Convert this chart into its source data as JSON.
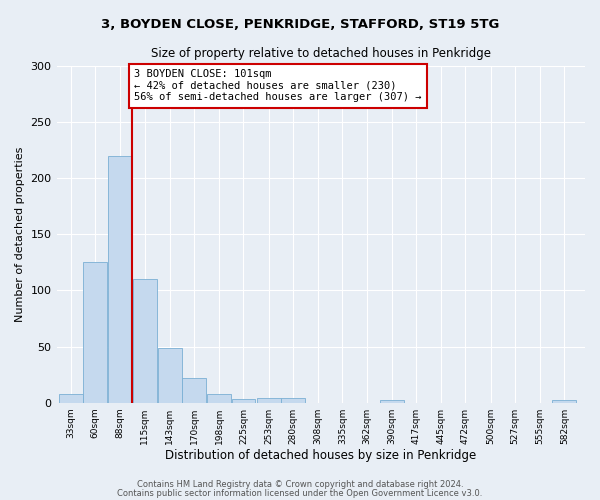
{
  "title1": "3, BOYDEN CLOSE, PENKRIDGE, STAFFORD, ST19 5TG",
  "title2": "Size of property relative to detached houses in Penkridge",
  "xlabel": "Distribution of detached houses by size in Penkridge",
  "ylabel": "Number of detached properties",
  "bins": [
    33,
    60,
    88,
    115,
    143,
    170,
    198,
    225,
    253,
    280,
    308,
    335,
    362,
    390,
    417,
    445,
    472,
    500,
    527,
    555,
    582
  ],
  "values": [
    8,
    125,
    220,
    110,
    49,
    22,
    8,
    3,
    4,
    4,
    0,
    0,
    0,
    2,
    0,
    0,
    0,
    0,
    0,
    0,
    2
  ],
  "bar_color": "#c5d9ee",
  "bar_edge_color": "#7aafd4",
  "vline_x": 101,
  "vline_color": "#cc0000",
  "annotation_text": "3 BOYDEN CLOSE: 101sqm\n← 42% of detached houses are smaller (230)\n56% of semi-detached houses are larger (307) →",
  "annotation_box_color": "#ffffff",
  "annotation_box_edge": "#cc0000",
  "ylim": [
    0,
    300
  ],
  "yticks": [
    0,
    50,
    100,
    150,
    200,
    250,
    300
  ],
  "footer1": "Contains HM Land Registry data © Crown copyright and database right 2024.",
  "footer2": "Contains public sector information licensed under the Open Government Licence v3.0.",
  "bg_color": "#e8eef5",
  "plot_bg_color": "#e8eef5"
}
